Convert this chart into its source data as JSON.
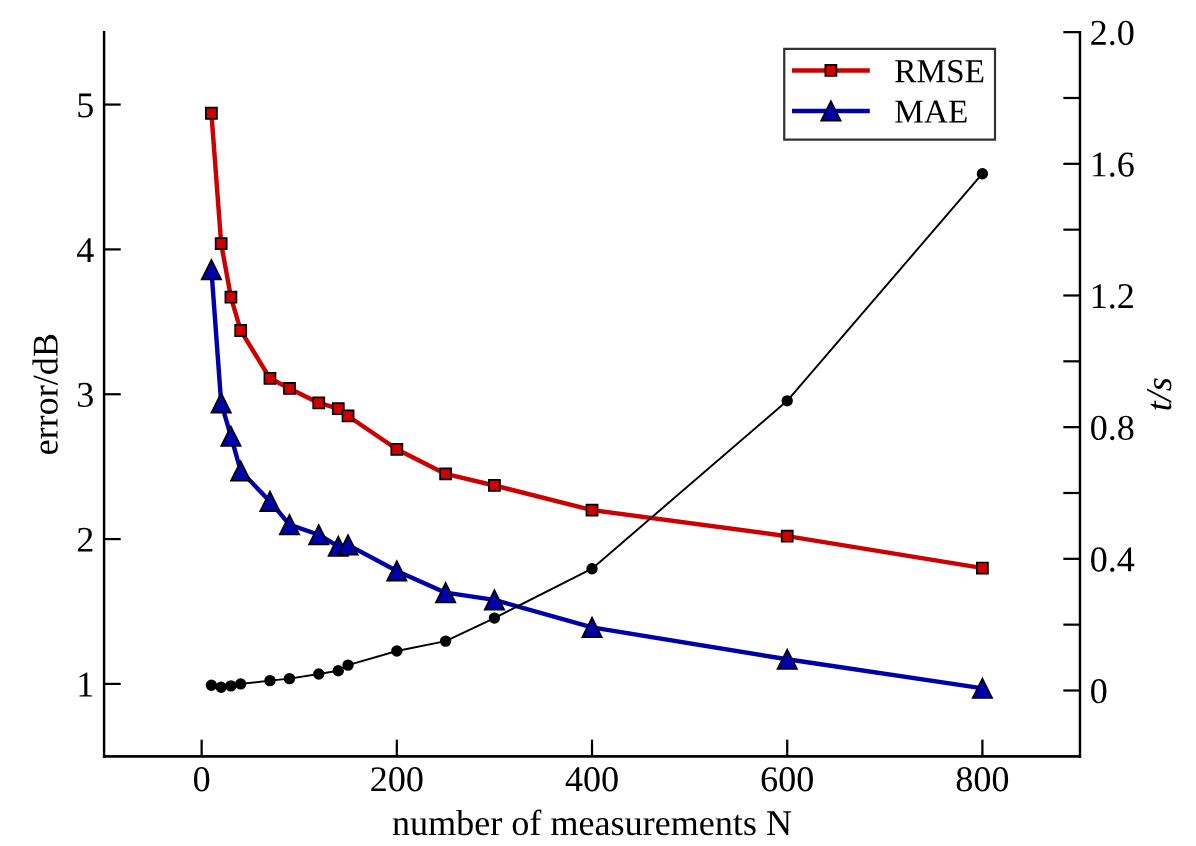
{
  "chart_data": {
    "type": "line",
    "xlabel": "number of measurements N",
    "ylabel": "error/dB",
    "y2label": "t/s",
    "x": [
      10,
      20,
      30,
      40,
      70,
      90,
      120,
      140,
      150,
      200,
      250,
      300,
      400,
      600,
      800
    ],
    "series": [
      {
        "name": "RMSE",
        "color": "#cc0000",
        "marker": "square",
        "values": [
          4.94,
          4.04,
          3.67,
          3.44,
          3.11,
          3.04,
          2.94,
          2.9,
          2.85,
          2.62,
          2.45,
          2.37,
          2.2,
          2.02,
          1.8
        ]
      },
      {
        "name": "MAE",
        "color": "#0000aa",
        "marker": "triangle",
        "values": [
          3.86,
          2.94,
          2.71,
          2.47,
          2.26,
          2.1,
          2.03,
          1.95,
          1.96,
          1.78,
          1.63,
          1.58,
          1.39,
          1.17,
          0.97
        ]
      },
      {
        "color": "#000000",
        "marker": "circle",
        "axis": "y2",
        "values": [
          0.016,
          0.01,
          0.014,
          0.02,
          0.03,
          0.036,
          0.05,
          0.06,
          0.077,
          0.12,
          0.15,
          0.22,
          0.37,
          0.88,
          1.57
        ]
      }
    ],
    "xlim": [
      -100,
      900
    ],
    "xticks": [
      0,
      200,
      400,
      600,
      800
    ],
    "ylim": [
      0.5,
      5.5
    ],
    "yticks": [
      1,
      2,
      3,
      4,
      5
    ],
    "y2lim": [
      -0.2,
      2.0
    ],
    "y2ticks": [
      0,
      {
        "value": 0.2,
        "label": null
      },
      0.4,
      {
        "value": 0.6,
        "label": null
      },
      0.8,
      {
        "value": 1.0,
        "label": null
      },
      1.2,
      {
        "value": 1.4,
        "label": null
      },
      1.6,
      {
        "value": 1.8,
        "label": null
      },
      {
        "value": 2.0,
        "label": "2.0"
      }
    ],
    "grid": false,
    "legend": "top right",
    "line_style": "solid"
  }
}
